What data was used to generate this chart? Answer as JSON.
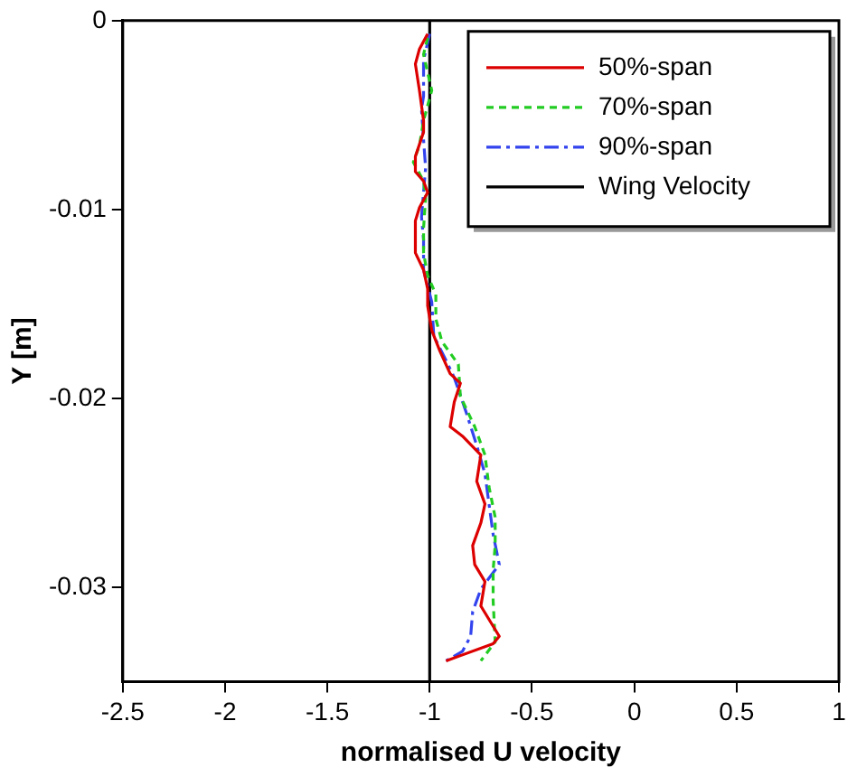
{
  "chart_data": {
    "type": "line",
    "xlabel": "normalised U velocity",
    "ylabel": "Y [m]",
    "xlim": [
      -2.5,
      1
    ],
    "xticks": [
      -2.5,
      -2,
      -1.5,
      -1,
      -0.5,
      0,
      0.5,
      1
    ],
    "ylim": [
      -0.035,
      0
    ],
    "yticks": [
      0,
      -0.01,
      -0.02,
      -0.03
    ],
    "grid": false,
    "legend": "top right",
    "marker": "none",
    "series": [
      {
        "name": "50%-span",
        "color": "#dd0000",
        "line_style": "solid",
        "x": [
          -1.01,
          -1.05,
          -1.07,
          -1.05,
          -1.03,
          -1.03,
          -1.07,
          -1.07,
          -1.03,
          -1.01,
          -1.05,
          -1.07,
          -1.07,
          -1.03,
          -1.01,
          -1.01,
          -0.99,
          -0.95,
          -0.9,
          -0.85,
          -0.88,
          -0.9,
          -0.84,
          -0.75,
          -0.77,
          -0.73,
          -0.75,
          -0.79,
          -0.78,
          -0.73,
          -0.75,
          -0.66,
          -0.69,
          -0.92
        ],
        "values": [
          -0.0007,
          -0.0015,
          -0.0023,
          -0.0037,
          -0.0053,
          -0.0059,
          -0.0072,
          -0.008,
          -0.0085,
          -0.0091,
          -0.0099,
          -0.0106,
          -0.0123,
          -0.0132,
          -0.0142,
          -0.0151,
          -0.0164,
          -0.0175,
          -0.0187,
          -0.0192,
          -0.0202,
          -0.0215,
          -0.022,
          -0.023,
          -0.0244,
          -0.0256,
          -0.0266,
          -0.0278,
          -0.0288,
          -0.0297,
          -0.031,
          -0.0326,
          -0.033,
          -0.0339
        ]
      },
      {
        "name": "70%-span",
        "color": "#22cc22",
        "line_style": "dashed",
        "x": [
          -1.01,
          -1.03,
          -0.99,
          -1.03,
          -1.05,
          -1.08,
          -1.03,
          -1.02,
          -1.03,
          -1.03,
          -1.01,
          -0.97,
          -0.97,
          -0.94,
          -0.86,
          -0.85,
          -0.78,
          -0.73,
          -0.71,
          -0.68,
          -0.68,
          -0.69,
          -0.69,
          -0.68,
          -0.75
        ],
        "values": [
          -0.0009,
          -0.0018,
          -0.0037,
          -0.0053,
          -0.0066,
          -0.0075,
          -0.0085,
          -0.0094,
          -0.011,
          -0.0123,
          -0.0135,
          -0.0145,
          -0.0158,
          -0.017,
          -0.0182,
          -0.0199,
          -0.0215,
          -0.023,
          -0.0247,
          -0.0263,
          -0.0278,
          -0.0291,
          -0.0307,
          -0.0329,
          -0.0339
        ]
      },
      {
        "name": "90%-span",
        "color": "#3344ee",
        "line_style": "dashdot",
        "x": [
          -1,
          -1.03,
          -1.03,
          -1.04,
          -1.03,
          -1.02,
          -1.03,
          -1.04,
          -1.03,
          -1.03,
          -0.99,
          -0.98,
          -0.92,
          -0.88,
          -0.82,
          -0.77,
          -0.73,
          -0.71,
          -0.69,
          -0.66,
          -0.75,
          -0.79,
          -0.8,
          -0.84,
          -0.92
        ],
        "values": [
          -0.0007,
          -0.0021,
          -0.004,
          -0.0047,
          -0.0063,
          -0.0078,
          -0.0091,
          -0.0104,
          -0.0116,
          -0.0132,
          -0.0149,
          -0.0167,
          -0.018,
          -0.0189,
          -0.0208,
          -0.0225,
          -0.024,
          -0.0256,
          -0.0272,
          -0.0288,
          -0.0301,
          -0.0313,
          -0.0326,
          -0.0334,
          -0.0339
        ]
      },
      {
        "name": "Wing Velocity",
        "color": "#000000",
        "line_style": "solid",
        "x": [
          -1,
          -1
        ],
        "values": [
          0,
          -0.035
        ]
      }
    ]
  }
}
